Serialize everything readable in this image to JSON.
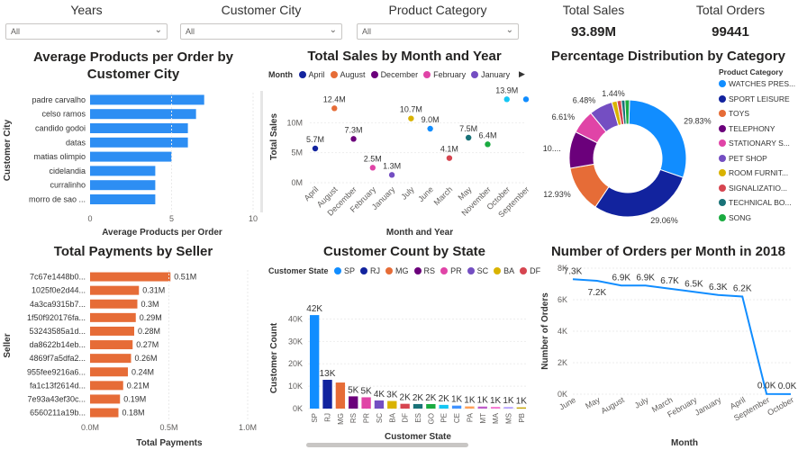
{
  "slicers": [
    {
      "title": "Years",
      "value": "All"
    },
    {
      "title": "Customer City",
      "value": "All"
    },
    {
      "title": "Product Category",
      "value": "All"
    }
  ],
  "kpis": [
    {
      "label": "Total Sales",
      "value": "93.89M"
    },
    {
      "label": "Total Orders",
      "value": "99441"
    }
  ],
  "icons": {
    "dropdown": "chevron-down-icon",
    "scroll_right": "caret-right-icon"
  },
  "chart_data": [
    {
      "id": "avg_products",
      "type": "bar",
      "orientation": "horizontal",
      "title": "Average Products per Order by Customer City",
      "xlabel": "Average Products per Order",
      "ylabel": "Customer City",
      "categories": [
        "padre carvalho",
        "celso ramos",
        "candido godoi",
        "datas",
        "matias olimpio",
        "cidelandia",
        "curralinho",
        "morro de sao ..."
      ],
      "values": [
        7.0,
        6.5,
        6.0,
        6.0,
        5.0,
        4.0,
        4.0,
        4.0
      ],
      "xticks": [
        "0",
        "5",
        "10"
      ],
      "xlim": [
        0,
        10
      ],
      "color": "#2d8ef3"
    },
    {
      "id": "sales_by_month",
      "type": "scatter",
      "title": "Total Sales by Month and Year",
      "xlabel": "Month and Year",
      "ylabel": "Total Sales",
      "legend_title": "Month",
      "legend": [
        {
          "name": "April",
          "color": "#12239e"
        },
        {
          "name": "August",
          "color": "#e66c37"
        },
        {
          "name": "December",
          "color": "#6b007b"
        },
        {
          "name": "February",
          "color": "#e044a7"
        },
        {
          "name": "January",
          "color": "#744ec2"
        }
      ],
      "categories": [
        "April",
        "August",
        "December",
        "February",
        "January",
        "July",
        "June",
        "March",
        "May",
        "November",
        "October",
        "September"
      ],
      "points": [
        {
          "x": "April",
          "y": 5.7,
          "label": "5.7M",
          "color": "#12239e"
        },
        {
          "x": "August",
          "y": 12.4,
          "label": "12.4M",
          "color": "#e66c37"
        },
        {
          "x": "December",
          "y": 7.3,
          "label": "7.3M",
          "color": "#6b007b"
        },
        {
          "x": "February",
          "y": 2.5,
          "label": "2.5M",
          "color": "#e044a7"
        },
        {
          "x": "January",
          "y": 1.3,
          "label": "1.3M",
          "color": "#744ec2"
        },
        {
          "x": "July",
          "y": 10.7,
          "label": "10.7M",
          "color": "#d9b300"
        },
        {
          "x": "June",
          "y": 9.0,
          "label": "9.0M",
          "color": "#118dff"
        },
        {
          "x": "March",
          "y": 4.1,
          "label": "4.1M",
          "color": "#d64550"
        },
        {
          "x": "May",
          "y": 7.5,
          "label": "7.5M",
          "color": "#197278"
        },
        {
          "x": "November",
          "y": 6.4,
          "label": "6.4M",
          "color": "#1aab40"
        },
        {
          "x": "October",
          "y": 13.9,
          "label": "13.9M",
          "color": "#15c6f4"
        },
        {
          "x": "September",
          "y": 13.9,
          "label": "",
          "color": "#118dff"
        }
      ],
      "yticks": [
        "0M",
        "5M",
        "10M"
      ],
      "ylim": [
        0,
        15
      ]
    },
    {
      "id": "category_share",
      "type": "pie",
      "title": "Percentage Distribution by Category",
      "legend_title": "Product Category",
      "slices": [
        {
          "name": "WATCHES PRES...",
          "value": 29.83,
          "label": "29.83%",
          "color": "#118dff"
        },
        {
          "name": "SPORT LEISURE",
          "value": 29.06,
          "label": "29.06%",
          "color": "#12239e"
        },
        {
          "name": "TOYS",
          "value": 12.93,
          "label": "12.93%",
          "color": "#e66c37"
        },
        {
          "name": "TELEPHONY",
          "value": 10.2,
          "label": "10....",
          "color": "#6b007b"
        },
        {
          "name": "STATIONARY S...",
          "value": 6.61,
          "label": "6.61%",
          "color": "#e044a7"
        },
        {
          "name": "PET SHOP",
          "value": 6.48,
          "label": "6.48%",
          "color": "#744ec2"
        },
        {
          "name": "ROOM FURNIT...",
          "value": 1.44,
          "label": "1.44%",
          "color": "#d9b300"
        },
        {
          "name": "SIGNALIZATIO...",
          "value": 1.2,
          "label": "",
          "color": "#d64550"
        },
        {
          "name": "TECHNICAL BO...",
          "value": 1.0,
          "label": "",
          "color": "#197278"
        },
        {
          "name": "SONG",
          "value": 1.25,
          "label": "",
          "color": "#1aab40"
        }
      ]
    },
    {
      "id": "payments_by_seller",
      "type": "bar",
      "orientation": "horizontal",
      "title": "Total Payments by Seller",
      "xlabel": "Total Payments",
      "ylabel": "Seller",
      "categories": [
        "7c67e1448b0...",
        "1025f0e2d44...",
        "4a3ca9315b7...",
        "1f50f920176fa...",
        "53243585a1d...",
        "da8622b14eb...",
        "4869f7a5dfa2...",
        "955fee9216a6...",
        "fa1c13f2614d...",
        "7e93a43ef30c...",
        "6560211a19b..."
      ],
      "values": [
        0.51,
        0.31,
        0.3,
        0.29,
        0.28,
        0.27,
        0.26,
        0.24,
        0.21,
        0.19,
        0.18
      ],
      "labels": [
        "0.51M",
        "0.31M",
        "0.3M",
        "0.29M",
        "0.28M",
        "0.27M",
        "0.26M",
        "0.24M",
        "0.21M",
        "0.19M",
        "0.18M"
      ],
      "xticks": [
        "0.0M",
        "0.5M",
        "1.0M"
      ],
      "xlim": [
        0,
        1.0
      ],
      "color": "#e66c37"
    },
    {
      "id": "customers_by_state",
      "type": "bar",
      "title": "Customer Count by State",
      "xlabel": "Customer State",
      "ylabel": "Customer Count",
      "legend_title": "Customer State",
      "legend": [
        {
          "name": "SP",
          "color": "#118dff"
        },
        {
          "name": "RJ",
          "color": "#12239e"
        },
        {
          "name": "MG",
          "color": "#e66c37"
        },
        {
          "name": "RS",
          "color": "#6b007b"
        },
        {
          "name": "PR",
          "color": "#e044a7"
        },
        {
          "name": "SC",
          "color": "#744ec2"
        },
        {
          "name": "BA",
          "color": "#d9b300"
        },
        {
          "name": "DF",
          "color": "#d64550"
        }
      ],
      "categories": [
        "SP",
        "RJ",
        "MG",
        "RS",
        "PR",
        "SC",
        "BA",
        "DF",
        "ES",
        "GO",
        "PE",
        "CE",
        "PA",
        "MT",
        "MA",
        "MS",
        "PB"
      ],
      "values": [
        41746,
        12852,
        11635,
        5466,
        5045,
        3637,
        3380,
        2140,
        2033,
        2020,
        1652,
        1336,
        975,
        907,
        747,
        715,
        536
      ],
      "labels": [
        "42K",
        "13K",
        "",
        "5K",
        "5K",
        "4K",
        "3K",
        "2K",
        "2K",
        "2K",
        "2K",
        "1K",
        "1K",
        "1K",
        "1K",
        "1K",
        "1K"
      ],
      "colors": [
        "#118dff",
        "#12239e",
        "#e66c37",
        "#6b007b",
        "#e044a7",
        "#744ec2",
        "#d9b300",
        "#d64550",
        "#197278",
        "#1aab40",
        "#15c6f4",
        "#4092ff",
        "#ffa058",
        "#be5dc9",
        "#f472d0",
        "#b5a1ff",
        "#c4a200"
      ],
      "yticks": [
        "0K",
        "10K",
        "20K",
        "30K",
        "40K"
      ],
      "ylim": [
        0,
        45000
      ]
    },
    {
      "id": "orders_2018",
      "type": "line",
      "title": "Number of Orders per Month in 2018",
      "xlabel": "Month",
      "ylabel": "Number of Orders",
      "categories": [
        "June",
        "May",
        "August",
        "July",
        "March",
        "February",
        "January",
        "April",
        "September",
        "October"
      ],
      "values": [
        7300,
        7200,
        6900,
        6900,
        6700,
        6500,
        6300,
        6200,
        16,
        4
      ],
      "labels": [
        "7.3K",
        "7.2K",
        "6.9K",
        "6.9K",
        "6.7K",
        "6.5K",
        "6.3K",
        "6.2K",
        "0.0K",
        "0.0K"
      ],
      "yticks": [
        "0K",
        "2K",
        "4K",
        "6K",
        "8K"
      ],
      "ylim": [
        0,
        8000
      ],
      "color": "#118dff"
    }
  ]
}
